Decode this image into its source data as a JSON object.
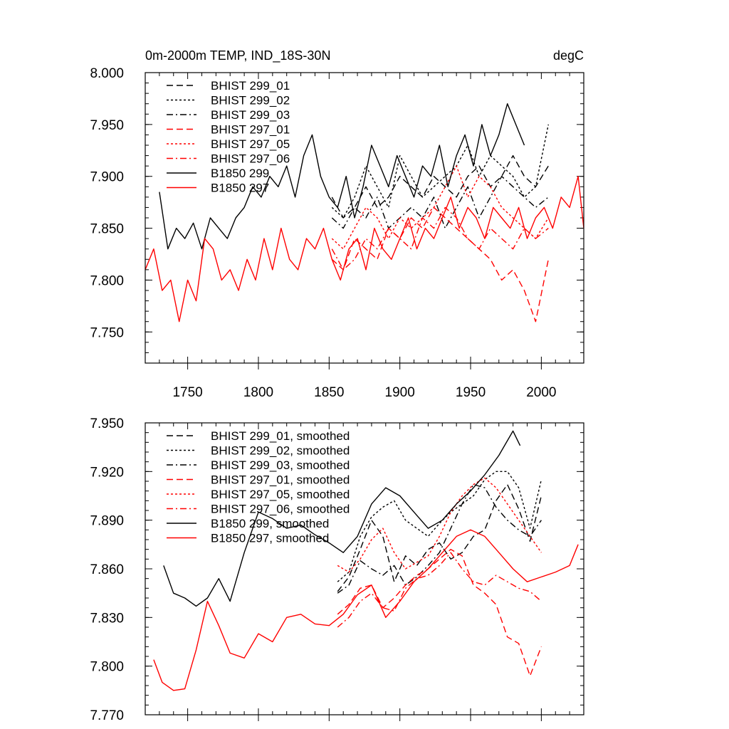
{
  "chart_data": [
    {
      "type": "line",
      "title_left": "0m-2000m TEMP, IND_18S-30N",
      "title_right": "degC",
      "xlim": [
        1720,
        2030
      ],
      "ylim": [
        7.72,
        8.0
      ],
      "x_ticks": [
        1750,
        1800,
        1850,
        1900,
        1950,
        2000
      ],
      "y_ticks": [
        7.75,
        7.8,
        7.85,
        7.9,
        7.95,
        8.0
      ],
      "y_tick_labels": [
        "7.750",
        "7.800",
        "7.850",
        "7.900",
        "7.950",
        "8.000"
      ],
      "legend_position": "top-left",
      "series": [
        {
          "name": "BHIST 299_01",
          "color": "#000000",
          "style": "long-dash",
          "x": [
            1852,
            1860,
            1868,
            1876,
            1884,
            1892,
            1900,
            1908,
            1916,
            1924,
            1932,
            1940,
            1948,
            1956,
            1964,
            1972,
            1980,
            1988,
            1996,
            2005
          ],
          "y": [
            7.88,
            7.86,
            7.87,
            7.89,
            7.87,
            7.88,
            7.9,
            7.89,
            7.88,
            7.9,
            7.89,
            7.88,
            7.9,
            7.91,
            7.89,
            7.9,
            7.92,
            7.9,
            7.89,
            7.91
          ]
        },
        {
          "name": "BHIST 299_02",
          "color": "#000000",
          "style": "short-dash",
          "x": [
            1852,
            1860,
            1868,
            1876,
            1884,
            1892,
            1900,
            1908,
            1916,
            1924,
            1932,
            1940,
            1948,
            1956,
            1964,
            1972,
            1980,
            1988,
            1996,
            2005
          ],
          "y": [
            7.87,
            7.86,
            7.88,
            7.91,
            7.89,
            7.87,
            7.92,
            7.9,
            7.88,
            7.89,
            7.9,
            7.91,
            7.93,
            7.9,
            7.92,
            7.91,
            7.9,
            7.88,
            7.89,
            7.95
          ]
        },
        {
          "name": "BHIST 299_03",
          "color": "#000000",
          "style": "dash-dot",
          "x": [
            1852,
            1860,
            1868,
            1876,
            1884,
            1892,
            1900,
            1908,
            1916,
            1924,
            1932,
            1940,
            1948,
            1956,
            1964,
            1972,
            1980,
            1988,
            1996,
            2005
          ],
          "y": [
            7.86,
            7.85,
            7.87,
            7.86,
            7.88,
            7.85,
            7.86,
            7.87,
            7.86,
            7.88,
            7.85,
            7.87,
            7.89,
            7.86,
            7.88,
            7.9,
            7.89,
            7.88,
            7.87,
            7.88
          ]
        },
        {
          "name": "BHIST 297_01",
          "color": "#ff0000",
          "style": "long-dash",
          "x": [
            1852,
            1860,
            1868,
            1876,
            1884,
            1892,
            1900,
            1908,
            1916,
            1924,
            1932,
            1940,
            1948,
            1956,
            1964,
            1972,
            1980,
            1988,
            1996,
            2005
          ],
          "y": [
            7.82,
            7.81,
            7.84,
            7.83,
            7.82,
            7.85,
            7.84,
            7.86,
            7.85,
            7.87,
            7.86,
            7.85,
            7.84,
            7.83,
            7.82,
            7.8,
            7.81,
            7.79,
            7.76,
            7.82
          ]
        },
        {
          "name": "BHIST 297_05",
          "color": "#ff0000",
          "style": "short-dash",
          "x": [
            1852,
            1860,
            1868,
            1876,
            1884,
            1892,
            1900,
            1908,
            1916,
            1924,
            1932,
            1940,
            1948,
            1956,
            1964,
            1972,
            1980,
            1988,
            1996,
            2005
          ],
          "y": [
            7.84,
            7.83,
            7.85,
            7.87,
            7.86,
            7.84,
            7.86,
            7.85,
            7.86,
            7.87,
            7.89,
            7.91,
            7.88,
            7.9,
            7.89,
            7.87,
            7.86,
            7.85,
            7.84,
            7.86
          ]
        },
        {
          "name": "BHIST 297_06",
          "color": "#ff0000",
          "style": "dash-dot",
          "x": [
            1852,
            1860,
            1868,
            1876,
            1884,
            1892,
            1900,
            1908,
            1916,
            1924,
            1932,
            1940,
            1948,
            1956,
            1964,
            1972,
            1980,
            1988,
            1996,
            2005
          ],
          "y": [
            7.83,
            7.81,
            7.82,
            7.84,
            7.83,
            7.85,
            7.84,
            7.83,
            7.86,
            7.85,
            7.87,
            7.86,
            7.84,
            7.83,
            7.85,
            7.84,
            7.83,
            7.85,
            7.84,
            7.85
          ]
        },
        {
          "name": "B1850 299",
          "color": "#000000",
          "style": "solid",
          "x": [
            1730,
            1736,
            1742,
            1748,
            1754,
            1760,
            1766,
            1772,
            1778,
            1784,
            1790,
            1796,
            1802,
            1808,
            1814,
            1820,
            1826,
            1832,
            1838,
            1844,
            1850,
            1856,
            1862,
            1868,
            1874,
            1880,
            1886,
            1892,
            1898,
            1904,
            1910,
            1916,
            1922,
            1928,
            1934,
            1940,
            1946,
            1952,
            1958,
            1964,
            1970,
            1976,
            1982,
            1988
          ],
          "y": [
            7.885,
            7.83,
            7.85,
            7.84,
            7.855,
            7.83,
            7.86,
            7.85,
            7.84,
            7.86,
            7.87,
            7.89,
            7.88,
            7.9,
            7.89,
            7.91,
            7.88,
            7.92,
            7.94,
            7.9,
            7.88,
            7.87,
            7.9,
            7.86,
            7.89,
            7.93,
            7.91,
            7.89,
            7.92,
            7.9,
            7.88,
            7.91,
            7.9,
            7.93,
            7.89,
            7.92,
            7.94,
            7.91,
            7.95,
            7.92,
            7.94,
            7.97,
            7.95,
            7.93
          ]
        },
        {
          "name": "B1850 297",
          "color": "#ff0000",
          "style": "solid",
          "x": [
            1720,
            1726,
            1732,
            1738,
            1744,
            1750,
            1756,
            1762,
            1768,
            1774,
            1780,
            1786,
            1792,
            1798,
            1804,
            1810,
            1816,
            1822,
            1828,
            1834,
            1840,
            1846,
            1852,
            1858,
            1864,
            1870,
            1876,
            1882,
            1888,
            1894,
            1900,
            1906,
            1912,
            1918,
            1924,
            1930,
            1936,
            1942,
            1948,
            1954,
            1960,
            1966,
            1972,
            1978,
            1984,
            1990,
            1996,
            2002,
            2008,
            2014,
            2020,
            2026,
            2030
          ],
          "y": [
            7.81,
            7.83,
            7.79,
            7.8,
            7.76,
            7.8,
            7.78,
            7.84,
            7.83,
            7.8,
            7.81,
            7.79,
            7.82,
            7.8,
            7.84,
            7.81,
            7.85,
            7.82,
            7.81,
            7.84,
            7.83,
            7.85,
            7.82,
            7.8,
            7.83,
            7.84,
            7.81,
            7.85,
            7.83,
            7.82,
            7.84,
            7.86,
            7.83,
            7.85,
            7.84,
            7.86,
            7.88,
            7.85,
            7.87,
            7.86,
            7.84,
            7.87,
            7.86,
            7.85,
            7.87,
            7.84,
            7.86,
            7.87,
            7.85,
            7.88,
            7.87,
            7.9,
            7.85
          ]
        }
      ]
    },
    {
      "type": "line",
      "xlim": [
        1720,
        2030
      ],
      "ylim": [
        7.77,
        7.95
      ],
      "x_ticks": [
        1750,
        1800,
        1850,
        1900,
        1950,
        2000
      ],
      "y_ticks": [
        7.77,
        7.8,
        7.83,
        7.86,
        7.89,
        7.92,
        7.95
      ],
      "y_tick_labels": [
        "7.770",
        "7.800",
        "7.830",
        "7.860",
        "7.890",
        "7.920",
        "7.950"
      ],
      "legend_position": "top-left",
      "series": [
        {
          "name": "BHIST 299_01, smoothed",
          "color": "#000000",
          "style": "long-dash",
          "x": [
            1856,
            1864,
            1872,
            1880,
            1888,
            1896,
            1904,
            1912,
            1920,
            1928,
            1936,
            1944,
            1952,
            1960,
            1968,
            1976,
            1984,
            1992,
            2000
          ],
          "y": [
            7.846,
            7.855,
            7.872,
            7.89,
            7.88,
            7.852,
            7.868,
            7.862,
            7.872,
            7.876,
            7.866,
            7.87,
            7.88,
            7.884,
            7.902,
            7.912,
            7.897,
            7.877,
            7.905
          ]
        },
        {
          "name": "BHIST 299_02, smoothed",
          "color": "#000000",
          "style": "short-dash",
          "x": [
            1856,
            1864,
            1872,
            1880,
            1888,
            1896,
            1904,
            1912,
            1920,
            1928,
            1936,
            1944,
            1952,
            1960,
            1968,
            1976,
            1984,
            1992,
            2000
          ],
          "y": [
            7.852,
            7.858,
            7.88,
            7.892,
            7.898,
            7.902,
            7.89,
            7.885,
            7.88,
            7.888,
            7.895,
            7.9,
            7.905,
            7.915,
            7.92,
            7.92,
            7.91,
            7.885,
            7.915
          ]
        },
        {
          "name": "BHIST 299_03, smoothed",
          "color": "#000000",
          "style": "dash-dot",
          "x": [
            1856,
            1864,
            1872,
            1880,
            1888,
            1896,
            1904,
            1912,
            1920,
            1928,
            1936,
            1944,
            1952,
            1960,
            1968,
            1976,
            1984,
            1992,
            2000
          ],
          "y": [
            7.845,
            7.85,
            7.865,
            7.86,
            7.856,
            7.862,
            7.85,
            7.855,
            7.862,
            7.87,
            7.885,
            7.9,
            7.912,
            7.91,
            7.898,
            7.89,
            7.884,
            7.88,
            7.89
          ]
        },
        {
          "name": "BHIST 297_01, smoothed",
          "color": "#ff0000",
          "style": "long-dash",
          "x": [
            1856,
            1864,
            1872,
            1880,
            1888,
            1896,
            1904,
            1912,
            1920,
            1928,
            1936,
            1944,
            1952,
            1960,
            1968,
            1976,
            1984,
            1992,
            2000
          ],
          "y": [
            7.832,
            7.838,
            7.848,
            7.85,
            7.836,
            7.842,
            7.85,
            7.856,
            7.86,
            7.866,
            7.872,
            7.868,
            7.85,
            7.845,
            7.838,
            7.818,
            7.814,
            7.794,
            7.812
          ]
        },
        {
          "name": "BHIST 297_05, smoothed",
          "color": "#ff0000",
          "style": "short-dash",
          "x": [
            1856,
            1864,
            1872,
            1880,
            1888,
            1896,
            1904,
            1912,
            1920,
            1928,
            1936,
            1944,
            1952,
            1960,
            1968,
            1976,
            1984,
            1992,
            2000
          ],
          "y": [
            7.862,
            7.858,
            7.866,
            7.878,
            7.885,
            7.87,
            7.86,
            7.864,
            7.868,
            7.88,
            7.895,
            7.905,
            7.912,
            7.916,
            7.91,
            7.9,
            7.89,
            7.88,
            7.87
          ]
        },
        {
          "name": "BHIST 297_06, smoothed",
          "color": "#ff0000",
          "style": "dash-dot",
          "x": [
            1856,
            1864,
            1872,
            1880,
            1888,
            1896,
            1904,
            1912,
            1920,
            1928,
            1936,
            1944,
            1952,
            1960,
            1968,
            1976,
            1984,
            1992,
            2000
          ],
          "y": [
            7.824,
            7.83,
            7.84,
            7.845,
            7.836,
            7.834,
            7.848,
            7.854,
            7.856,
            7.862,
            7.87,
            7.86,
            7.852,
            7.85,
            7.856,
            7.852,
            7.848,
            7.846,
            7.84
          ]
        },
        {
          "name": "B1850 299, smoothed",
          "color": "#000000",
          "style": "solid",
          "x": [
            1733,
            1740,
            1748,
            1756,
            1764,
            1772,
            1780,
            1790,
            1800,
            1810,
            1820,
            1830,
            1840,
            1850,
            1860,
            1870,
            1880,
            1890,
            1900,
            1910,
            1920,
            1930,
            1940,
            1950,
            1960,
            1970,
            1980,
            1985
          ],
          "y": [
            7.862,
            7.845,
            7.842,
            7.837,
            7.842,
            7.854,
            7.84,
            7.87,
            7.895,
            7.891,
            7.885,
            7.887,
            7.881,
            7.876,
            7.87,
            7.88,
            7.9,
            7.91,
            7.905,
            7.895,
            7.885,
            7.89,
            7.9,
            7.908,
            7.918,
            7.93,
            7.945,
            7.936
          ]
        },
        {
          "name": "B1850 297, smoothed",
          "color": "#ff0000",
          "style": "solid",
          "x": [
            1726,
            1732,
            1740,
            1748,
            1756,
            1764,
            1772,
            1780,
            1790,
            1800,
            1810,
            1820,
            1830,
            1840,
            1850,
            1860,
            1870,
            1880,
            1890,
            1900,
            1910,
            1920,
            1930,
            1940,
            1950,
            1960,
            1970,
            1980,
            1990,
            2000,
            2010,
            2020,
            2026
          ],
          "y": [
            7.804,
            7.79,
            7.785,
            7.786,
            7.81,
            7.84,
            7.825,
            7.808,
            7.805,
            7.82,
            7.815,
            7.83,
            7.832,
            7.826,
            7.825,
            7.832,
            7.844,
            7.85,
            7.83,
            7.84,
            7.852,
            7.86,
            7.87,
            7.88,
            7.884,
            7.88,
            7.87,
            7.86,
            7.852,
            7.855,
            7.858,
            7.862,
            7.875
          ]
        }
      ]
    }
  ]
}
